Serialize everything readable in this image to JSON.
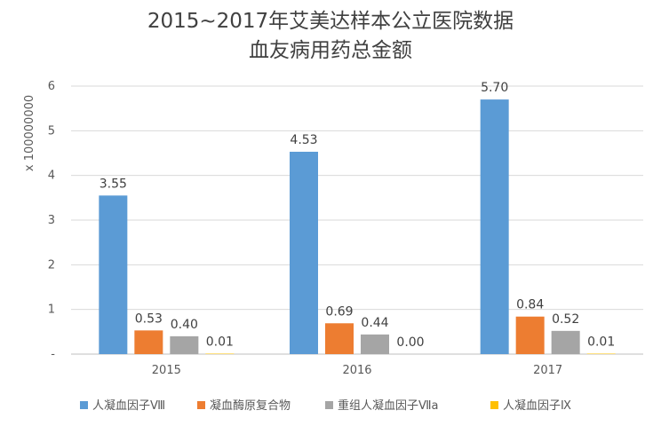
{
  "chart_data": {
    "type": "bar",
    "title": "2015~2017年艾美达样本公立医院数据",
    "subtitle": "血友病用药总金额",
    "ylabel": "x 100000000",
    "xlabel": "",
    "categories": [
      "2015",
      "2016",
      "2017"
    ],
    "ylim": [
      0,
      6
    ],
    "yticks": [
      "-",
      "1",
      "2",
      "3",
      "4",
      "5",
      "6"
    ],
    "grid": true,
    "legend_position": "bottom",
    "series": [
      {
        "name": "人凝血因子Ⅷ",
        "color": "#5b9bd5",
        "values": [
          3.55,
          4.53,
          5.7
        ],
        "labels": [
          "3.55",
          "4.53",
          "5.70"
        ]
      },
      {
        "name": "凝血酶原复合物",
        "color": "#ed7d31",
        "values": [
          0.53,
          0.69,
          0.84
        ],
        "labels": [
          "0.53",
          "0.69",
          "0.84"
        ]
      },
      {
        "name": "重组人凝血因子Ⅶa",
        "color": "#a5a5a5",
        "values": [
          0.4,
          0.44,
          0.52
        ],
        "labels": [
          "0.40",
          "0.44",
          "0.52"
        ]
      },
      {
        "name": "人凝血因子Ⅸ",
        "color": "#ffc000",
        "values": [
          0.01,
          0.0,
          0.01
        ],
        "labels": [
          "0.01",
          "0.00",
          "0.01"
        ]
      }
    ]
  }
}
